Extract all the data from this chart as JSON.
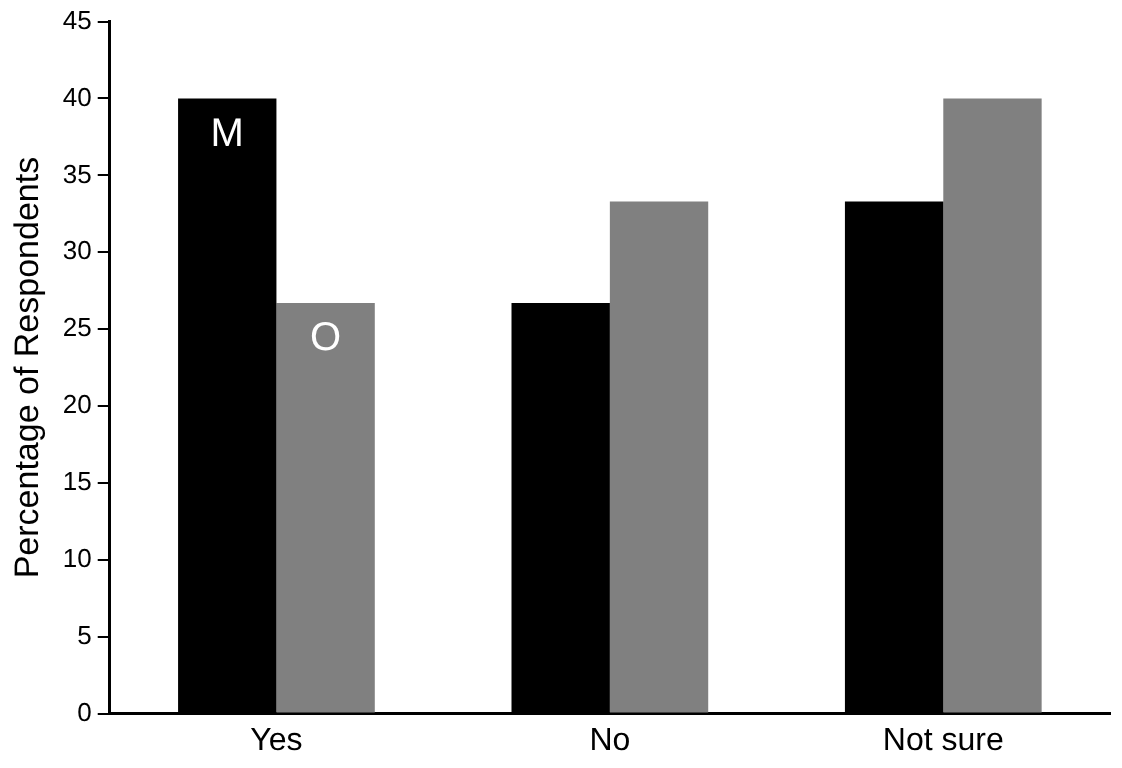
{
  "chart_data": {
    "type": "bar",
    "ylabel": "Percentage of Respondents",
    "categories": [
      "Yes",
      "No",
      "Not sure"
    ],
    "series": [
      {
        "name": "M",
        "color": "#000000",
        "values": [
          40,
          26.7,
          33.3
        ]
      },
      {
        "name": "O",
        "color": "#808080",
        "values": [
          26.7,
          33.3,
          40
        ]
      }
    ],
    "ylim": [
      0,
      45
    ],
    "yticks": [
      0,
      5,
      10,
      15,
      20,
      25,
      30,
      35,
      40,
      45
    ],
    "grid": false,
    "legend": false
  }
}
